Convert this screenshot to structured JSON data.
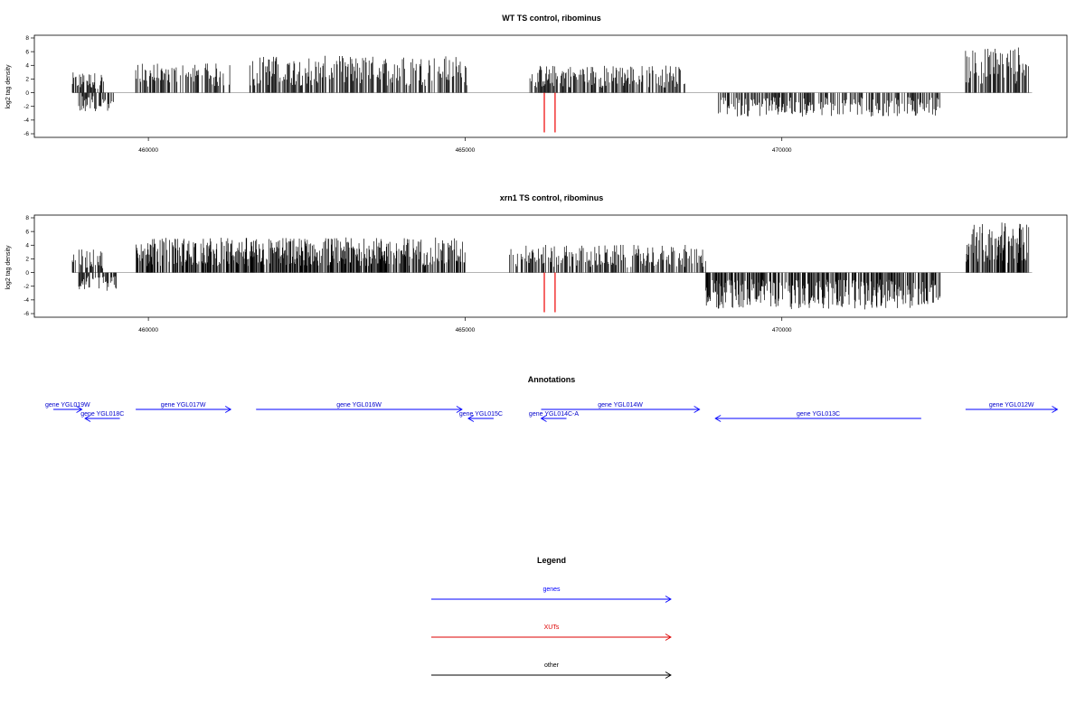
{
  "chart_data": [
    {
      "type": "bar",
      "title": "WT TS control, ribominus",
      "ylabel": "log2 tag density",
      "yticks": [
        "8",
        "6",
        "4",
        "2",
        "0",
        "-2",
        "-4",
        "-6"
      ],
      "ylim": [
        -6,
        8
      ],
      "xlim": [
        458200,
        474500
      ],
      "xticks": [
        "460000",
        "465000",
        "470000"
      ],
      "grid": false,
      "segments": [
        {
          "x": [
            458800,
            459300
          ],
          "amp": 2.2,
          "dir": 1
        },
        {
          "x": [
            458900,
            459500
          ],
          "amp": 2.0,
          "dir": -1
        },
        {
          "x": [
            459800,
            461300
          ],
          "amp": 3.2,
          "dir": 1
        },
        {
          "x": [
            461600,
            465050
          ],
          "amp": 4.0,
          "dir": 1
        },
        {
          "x": [
            466000,
            468500
          ],
          "amp": 3.0,
          "dir": 1
        },
        {
          "x": [
            469000,
            472500
          ],
          "amp": 2.6,
          "dir": -1
        },
        {
          "x": [
            472900,
            473900
          ],
          "amp": 5.0,
          "dir": 1
        }
      ],
      "xut_lines": [
        466250,
        466420
      ],
      "xut_depth": -5.8
    },
    {
      "type": "bar",
      "title": "xrn1 TS control, ribominus",
      "ylabel": "log2 tag density",
      "yticks": [
        "8",
        "6",
        "4",
        "2",
        "0",
        "-2",
        "-4",
        "-6"
      ],
      "ylim": [
        -6,
        8
      ],
      "xlim": [
        458200,
        474500
      ],
      "xticks": [
        "460000",
        "465000",
        "470000"
      ],
      "grid": false,
      "segments": [
        {
          "x": [
            458800,
            459300
          ],
          "amp": 2.5,
          "dir": 1
        },
        {
          "x": [
            458900,
            459500
          ],
          "amp": 2.0,
          "dir": -1
        },
        {
          "x": [
            459800,
            465000
          ],
          "amp": 3.8,
          "dir": 1
        },
        {
          "x": [
            465700,
            468800
          ],
          "amp": 3.0,
          "dir": 1
        },
        {
          "x": [
            468800,
            472500
          ],
          "amp": 4.0,
          "dir": -1
        },
        {
          "x": [
            472900,
            473900
          ],
          "amp": 5.5,
          "dir": 1
        }
      ],
      "xut_lines": [
        466250,
        466420
      ],
      "xut_depth": -5.8
    }
  ],
  "annotations": {
    "title": "Annotations",
    "color": "#0000ff",
    "genes": [
      {
        "label": "gene YGL019W",
        "x1": 458500,
        "x2": 458950,
        "row": 0,
        "dir": "right"
      },
      {
        "label": "gene YGL018C",
        "x1": 459000,
        "x2": 459550,
        "row": 1,
        "dir": "left"
      },
      {
        "label": "gene YGL017W",
        "x1": 459800,
        "x2": 461300,
        "row": 0,
        "dir": "right"
      },
      {
        "label": "gene YGL016W",
        "x1": 461700,
        "x2": 464950,
        "row": 0,
        "dir": "right"
      },
      {
        "label": "gene YGL015C",
        "x1": 465050,
        "x2": 465450,
        "row": 1,
        "dir": "left"
      },
      {
        "label": "gene YGL014C-A",
        "x1": 466200,
        "x2": 466600,
        "row": 1,
        "dir": "left"
      },
      {
        "label": "gene YGL014W",
        "x1": 466200,
        "x2": 468700,
        "row": 0,
        "dir": "right"
      },
      {
        "label": "gene YGL013C",
        "x1": 468950,
        "x2": 472200,
        "row": 1,
        "dir": "left"
      },
      {
        "label": "gene YGL012W",
        "x1": 472900,
        "x2": 474350,
        "row": 0,
        "dir": "right"
      }
    ]
  },
  "legend": {
    "title": "Legend",
    "items": [
      {
        "label": "genes",
        "color": "#0000ff"
      },
      {
        "label": "XUTs",
        "color": "#dd0000"
      },
      {
        "label": "other",
        "color": "#000000"
      }
    ]
  },
  "colors": {
    "axis": "#000000",
    "bars": "#000000",
    "xut": "#ee0000"
  }
}
